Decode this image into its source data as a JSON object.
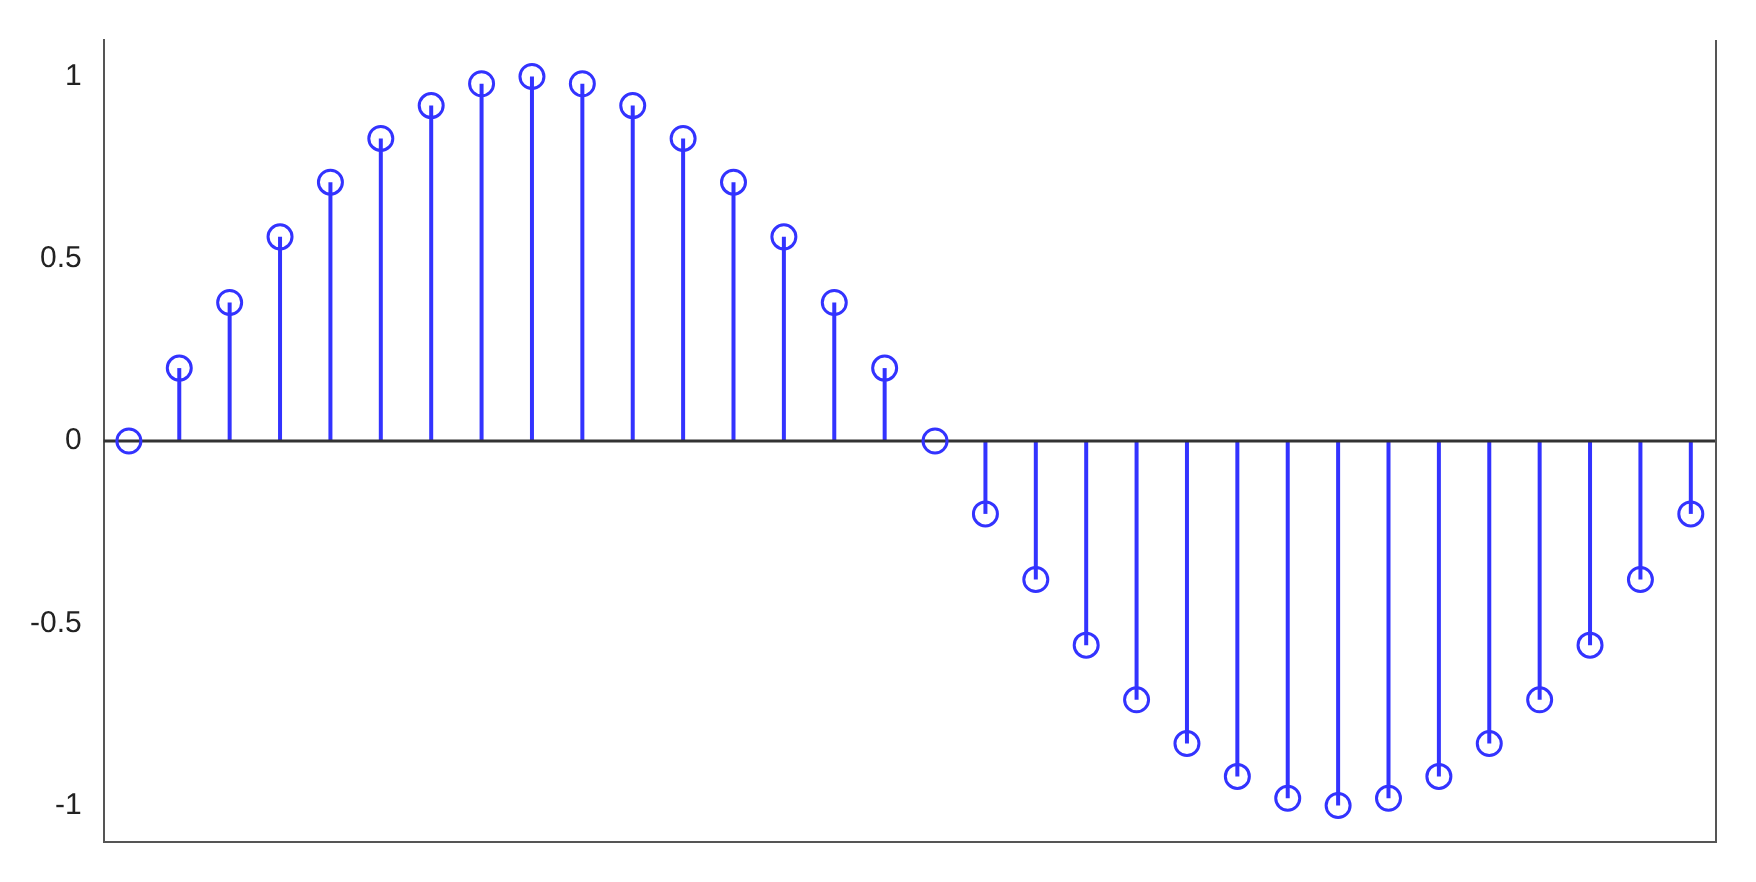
{
  "chart_data": {
    "type": "lollipop",
    "categories": [
      null,
      null,
      null,
      null,
      null,
      null,
      null,
      null,
      null,
      null,
      null,
      null,
      null,
      null,
      null,
      null,
      null,
      null,
      null,
      null,
      null,
      null,
      null,
      null,
      null,
      null,
      null,
      null,
      null,
      null,
      null,
      null
    ],
    "values": [
      0,
      0.2,
      0.38,
      0.56,
      0.71,
      0.83,
      0.92,
      0.98,
      1,
      0.98,
      0.92,
      0.83,
      0.71,
      0.56,
      0.38,
      0.2,
      0,
      -0.2,
      -0.38,
      -0.56,
      -0.71,
      -0.83,
      -0.92,
      -0.98,
      -1,
      -0.98,
      -0.92,
      -0.83,
      -0.71,
      -0.56,
      -0.38,
      -0.2
    ],
    "color": "#3333ff",
    "ylim": [
      -1.1,
      1.1
    ],
    "yticks": [
      -1,
      -0.5,
      0,
      0.5,
      1
    ],
    "ref_lines": [
      {
        "axis": "y",
        "value": 0,
        "color": "#333333"
      }
    ],
    "marker": "circle",
    "grid": false,
    "legend": false,
    "tick_labels": "y"
  }
}
